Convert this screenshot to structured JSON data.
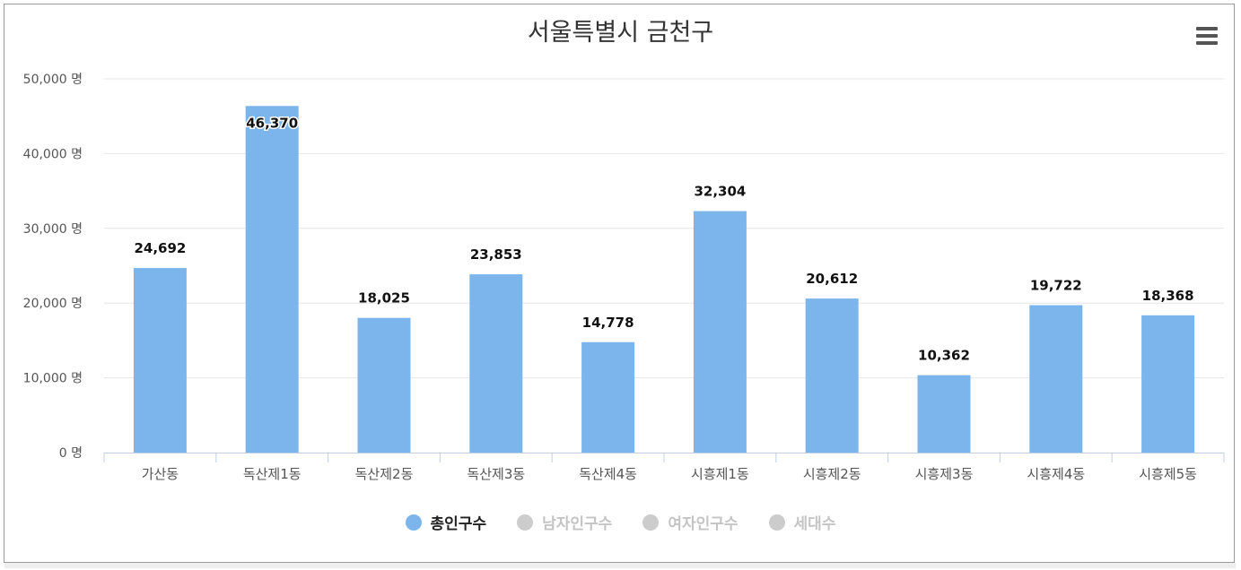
{
  "chart_data": {
    "type": "bar",
    "title": "서울특별시 금천구",
    "categories": [
      "가산동",
      "독산제1동",
      "독산제2동",
      "독산제3동",
      "독산제4동",
      "시흥제1동",
      "시흥제2동",
      "시흥제3동",
      "시흥제4동",
      "시흥제5동"
    ],
    "series": [
      {
        "name": "총인구수",
        "values": [
          24692,
          46370,
          18025,
          23853,
          14778,
          32304,
          20612,
          10362,
          19722,
          18368
        ]
      }
    ],
    "data_labels": [
      "24,692",
      "46,370",
      "18,025",
      "23,853",
      "14,778",
      "32,304",
      "20,612",
      "10,362",
      "19,722",
      "18,368"
    ],
    "ylim": [
      0,
      50000
    ],
    "yticks": [
      0,
      10000,
      20000,
      30000,
      40000,
      50000
    ],
    "ytick_labels": [
      "0 명",
      "10,000 명",
      "20,000 명",
      "30,000 명",
      "40,000 명",
      "50,000 명"
    ],
    "grid": true,
    "legend_position": "bottom-center",
    "bar_color": "#7cb5ec"
  },
  "legend": [
    {
      "label": "총인구수",
      "active": true,
      "color": "#7cb5ec"
    },
    {
      "label": "남자인구수",
      "active": false,
      "color": "#cccccc"
    },
    {
      "label": "여자인구수",
      "active": false,
      "color": "#cccccc"
    },
    {
      "label": "세대수",
      "active": false,
      "color": "#cccccc"
    }
  ],
  "menu_icon": "hamburger-menu-icon"
}
